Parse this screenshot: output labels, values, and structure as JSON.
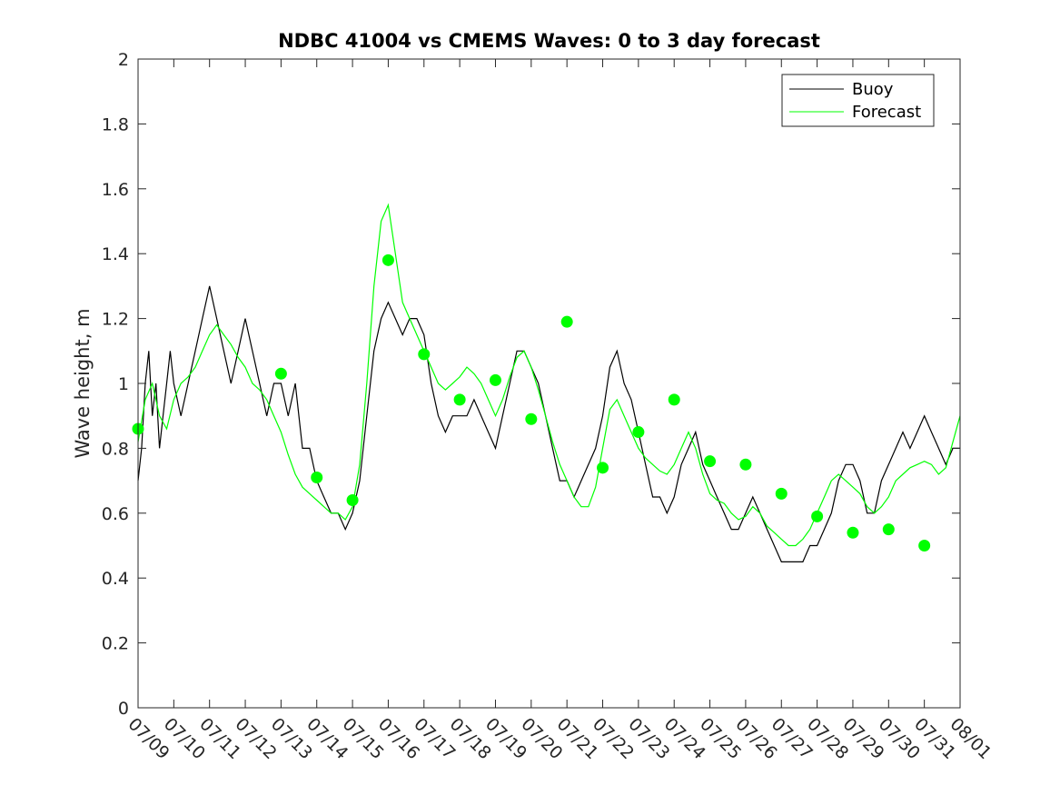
{
  "chart_data": {
    "type": "line",
    "title": "NDBC 41004 vs CMEMS Waves: 0 to 3 day forecast",
    "xlabel": "",
    "ylabel": "Wave height, m",
    "xlim": [
      0,
      23
    ],
    "ylim": [
      0,
      2
    ],
    "x_tick_labels": [
      "07/09",
      "07/10",
      "07/11",
      "07/12",
      "07/13",
      "07/14",
      "07/15",
      "07/16",
      "07/17",
      "07/18",
      "07/19",
      "07/20",
      "07/21",
      "07/22",
      "07/23",
      "07/24",
      "07/25",
      "07/26",
      "07/27",
      "07/28",
      "07/29",
      "07/30",
      "07/31",
      "08/01"
    ],
    "y_ticks": [
      0,
      0.2,
      0.4,
      0.6,
      0.8,
      1,
      1.2,
      1.4,
      1.6,
      1.8,
      2
    ],
    "y_tick_labels": [
      "0",
      "0.2",
      "0.4",
      "0.6",
      "0.8",
      "1",
      "1.2",
      "1.4",
      "1.6",
      "1.8",
      "2"
    ],
    "grid": false,
    "legend_position": "top-right",
    "colors": {
      "buoy": "#000000",
      "forecast": "#00ff00",
      "axes": "#262626"
    },
    "series": [
      {
        "name": "Buoy",
        "x_unit": "days since 07/09",
        "points": [
          [
            0,
            0.7
          ],
          [
            0.1,
            0.8
          ],
          [
            0.2,
            1.0
          ],
          [
            0.3,
            1.1
          ],
          [
            0.4,
            0.9
          ],
          [
            0.5,
            1.0
          ],
          [
            0.6,
            0.8
          ],
          [
            0.7,
            0.9
          ],
          [
            0.8,
            1.0
          ],
          [
            0.9,
            1.1
          ],
          [
            1.0,
            1.0
          ],
          [
            1.2,
            0.9
          ],
          [
            1.4,
            1.0
          ],
          [
            1.6,
            1.1
          ],
          [
            1.8,
            1.2
          ],
          [
            2.0,
            1.3
          ],
          [
            2.2,
            1.2
          ],
          [
            2.4,
            1.1
          ],
          [
            2.6,
            1.0
          ],
          [
            2.8,
            1.1
          ],
          [
            3.0,
            1.2
          ],
          [
            3.2,
            1.1
          ],
          [
            3.4,
            1.0
          ],
          [
            3.6,
            0.9
          ],
          [
            3.8,
            1.0
          ],
          [
            4.0,
            1.0
          ],
          [
            4.2,
            0.9
          ],
          [
            4.4,
            1.0
          ],
          [
            4.6,
            0.8
          ],
          [
            4.8,
            0.8
          ],
          [
            5.0,
            0.7
          ],
          [
            5.2,
            0.65
          ],
          [
            5.4,
            0.6
          ],
          [
            5.6,
            0.6
          ],
          [
            5.8,
            0.55
          ],
          [
            6.0,
            0.6
          ],
          [
            6.2,
            0.7
          ],
          [
            6.4,
            0.9
          ],
          [
            6.6,
            1.1
          ],
          [
            6.8,
            1.2
          ],
          [
            7.0,
            1.25
          ],
          [
            7.2,
            1.2
          ],
          [
            7.4,
            1.15
          ],
          [
            7.6,
            1.2
          ],
          [
            7.8,
            1.2
          ],
          [
            8.0,
            1.15
          ],
          [
            8.2,
            1.0
          ],
          [
            8.4,
            0.9
          ],
          [
            8.6,
            0.85
          ],
          [
            8.8,
            0.9
          ],
          [
            9.0,
            0.9
          ],
          [
            9.2,
            0.9
          ],
          [
            9.4,
            0.95
          ],
          [
            9.6,
            0.9
          ],
          [
            9.8,
            0.85
          ],
          [
            10.0,
            0.8
          ],
          [
            10.2,
            0.9
          ],
          [
            10.4,
            1.0
          ],
          [
            10.6,
            1.1
          ],
          [
            10.8,
            1.1
          ],
          [
            11.0,
            1.05
          ],
          [
            11.2,
            1.0
          ],
          [
            11.4,
            0.9
          ],
          [
            11.6,
            0.8
          ],
          [
            11.8,
            0.7
          ],
          [
            12.0,
            0.7
          ],
          [
            12.2,
            0.65
          ],
          [
            12.4,
            0.7
          ],
          [
            12.6,
            0.75
          ],
          [
            12.8,
            0.8
          ],
          [
            13.0,
            0.9
          ],
          [
            13.2,
            1.05
          ],
          [
            13.4,
            1.1
          ],
          [
            13.6,
            1.0
          ],
          [
            13.8,
            0.95
          ],
          [
            14.0,
            0.85
          ],
          [
            14.2,
            0.75
          ],
          [
            14.4,
            0.65
          ],
          [
            14.6,
            0.65
          ],
          [
            14.8,
            0.6
          ],
          [
            15.0,
            0.65
          ],
          [
            15.2,
            0.75
          ],
          [
            15.4,
            0.8
          ],
          [
            15.6,
            0.85
          ],
          [
            15.8,
            0.75
          ],
          [
            16.0,
            0.7
          ],
          [
            16.2,
            0.65
          ],
          [
            16.4,
            0.6
          ],
          [
            16.6,
            0.55
          ],
          [
            16.8,
            0.55
          ],
          [
            17.0,
            0.6
          ],
          [
            17.2,
            0.65
          ],
          [
            17.4,
            0.6
          ],
          [
            17.6,
            0.55
          ],
          [
            17.8,
            0.5
          ],
          [
            18.0,
            0.45
          ],
          [
            18.2,
            0.45
          ],
          [
            18.4,
            0.45
          ],
          [
            18.6,
            0.45
          ],
          [
            18.8,
            0.5
          ],
          [
            19.0,
            0.5
          ],
          [
            19.2,
            0.55
          ],
          [
            19.4,
            0.6
          ],
          [
            19.6,
            0.7
          ],
          [
            19.8,
            0.75
          ],
          [
            20.0,
            0.75
          ],
          [
            20.2,
            0.7
          ],
          [
            20.4,
            0.6
          ],
          [
            20.6,
            0.6
          ],
          [
            20.8,
            0.7
          ],
          [
            21.0,
            0.75
          ],
          [
            21.2,
            0.8
          ],
          [
            21.4,
            0.85
          ],
          [
            21.6,
            0.8
          ],
          [
            21.8,
            0.85
          ],
          [
            22.0,
            0.9
          ],
          [
            22.2,
            0.85
          ],
          [
            22.4,
            0.8
          ],
          [
            22.6,
            0.75
          ],
          [
            22.8,
            0.8
          ],
          [
            23.0,
            0.8
          ]
        ]
      },
      {
        "name": "Forecast",
        "x_unit": "days since 07/09",
        "points": [
          [
            0,
            0.82
          ],
          [
            0.2,
            0.95
          ],
          [
            0.4,
            1.0
          ],
          [
            0.6,
            0.9
          ],
          [
            0.8,
            0.86
          ],
          [
            1.0,
            0.95
          ],
          [
            1.2,
            1.0
          ],
          [
            1.4,
            1.02
          ],
          [
            1.6,
            1.05
          ],
          [
            1.8,
            1.1
          ],
          [
            2.0,
            1.15
          ],
          [
            2.2,
            1.18
          ],
          [
            2.4,
            1.15
          ],
          [
            2.6,
            1.12
          ],
          [
            2.8,
            1.08
          ],
          [
            3.0,
            1.05
          ],
          [
            3.2,
            1.0
          ],
          [
            3.4,
            0.98
          ],
          [
            3.6,
            0.95
          ],
          [
            3.8,
            0.9
          ],
          [
            4.0,
            0.85
          ],
          [
            4.2,
            0.78
          ],
          [
            4.4,
            0.72
          ],
          [
            4.6,
            0.68
          ],
          [
            4.8,
            0.66
          ],
          [
            5.0,
            0.64
          ],
          [
            5.2,
            0.62
          ],
          [
            5.4,
            0.6
          ],
          [
            5.6,
            0.6
          ],
          [
            5.8,
            0.58
          ],
          [
            6.0,
            0.62
          ],
          [
            6.2,
            0.75
          ],
          [
            6.4,
            1.0
          ],
          [
            6.6,
            1.3
          ],
          [
            6.8,
            1.5
          ],
          [
            7.0,
            1.55
          ],
          [
            7.2,
            1.4
          ],
          [
            7.4,
            1.25
          ],
          [
            7.6,
            1.2
          ],
          [
            7.8,
            1.15
          ],
          [
            8.0,
            1.1
          ],
          [
            8.2,
            1.05
          ],
          [
            8.4,
            1.0
          ],
          [
            8.6,
            0.98
          ],
          [
            8.8,
            1.0
          ],
          [
            9.0,
            1.02
          ],
          [
            9.2,
            1.05
          ],
          [
            9.4,
            1.03
          ],
          [
            9.6,
            1.0
          ],
          [
            9.8,
            0.95
          ],
          [
            10.0,
            0.9
          ],
          [
            10.2,
            0.95
          ],
          [
            10.4,
            1.02
          ],
          [
            10.6,
            1.08
          ],
          [
            10.8,
            1.1
          ],
          [
            11.0,
            1.05
          ],
          [
            11.2,
            0.98
          ],
          [
            11.4,
            0.9
          ],
          [
            11.6,
            0.82
          ],
          [
            11.8,
            0.75
          ],
          [
            12.0,
            0.7
          ],
          [
            12.2,
            0.65
          ],
          [
            12.4,
            0.62
          ],
          [
            12.6,
            0.62
          ],
          [
            12.8,
            0.68
          ],
          [
            13.0,
            0.8
          ],
          [
            13.2,
            0.92
          ],
          [
            13.4,
            0.95
          ],
          [
            13.6,
            0.9
          ],
          [
            13.8,
            0.85
          ],
          [
            14.0,
            0.8
          ],
          [
            14.2,
            0.77
          ],
          [
            14.4,
            0.75
          ],
          [
            14.6,
            0.73
          ],
          [
            14.8,
            0.72
          ],
          [
            15.0,
            0.75
          ],
          [
            15.2,
            0.8
          ],
          [
            15.4,
            0.85
          ],
          [
            15.6,
            0.8
          ],
          [
            15.8,
            0.72
          ],
          [
            16.0,
            0.66
          ],
          [
            16.2,
            0.64
          ],
          [
            16.4,
            0.63
          ],
          [
            16.6,
            0.6
          ],
          [
            16.8,
            0.58
          ],
          [
            17.0,
            0.59
          ],
          [
            17.2,
            0.62
          ],
          [
            17.4,
            0.6
          ],
          [
            17.6,
            0.56
          ],
          [
            17.8,
            0.54
          ],
          [
            18.0,
            0.52
          ],
          [
            18.2,
            0.5
          ],
          [
            18.4,
            0.5
          ],
          [
            18.6,
            0.52
          ],
          [
            18.8,
            0.55
          ],
          [
            19.0,
            0.6
          ],
          [
            19.2,
            0.65
          ],
          [
            19.4,
            0.7
          ],
          [
            19.6,
            0.72
          ],
          [
            19.8,
            0.7
          ],
          [
            20.0,
            0.68
          ],
          [
            20.2,
            0.66
          ],
          [
            20.4,
            0.62
          ],
          [
            20.6,
            0.6
          ],
          [
            20.8,
            0.62
          ],
          [
            21.0,
            0.65
          ],
          [
            21.2,
            0.7
          ],
          [
            21.4,
            0.72
          ],
          [
            21.6,
            0.74
          ],
          [
            21.8,
            0.75
          ],
          [
            22.0,
            0.76
          ],
          [
            22.2,
            0.75
          ],
          [
            22.4,
            0.72
          ],
          [
            22.6,
            0.74
          ],
          [
            22.8,
            0.82
          ],
          [
            23.0,
            0.9
          ]
        ]
      }
    ],
    "forecast_markers": {
      "x": [
        0,
        4,
        5,
        6,
        7,
        8,
        9,
        10,
        11,
        12,
        13,
        14,
        15,
        16,
        17,
        18,
        19,
        20,
        21,
        22
      ],
      "y": [
        0.86,
        1.03,
        0.71,
        0.64,
        1.38,
        1.09,
        0.95,
        1.01,
        0.89,
        1.19,
        0.74,
        0.85,
        0.95,
        0.76,
        0.75,
        0.66,
        0.59,
        0.54,
        0.55,
        0.5
      ]
    }
  }
}
